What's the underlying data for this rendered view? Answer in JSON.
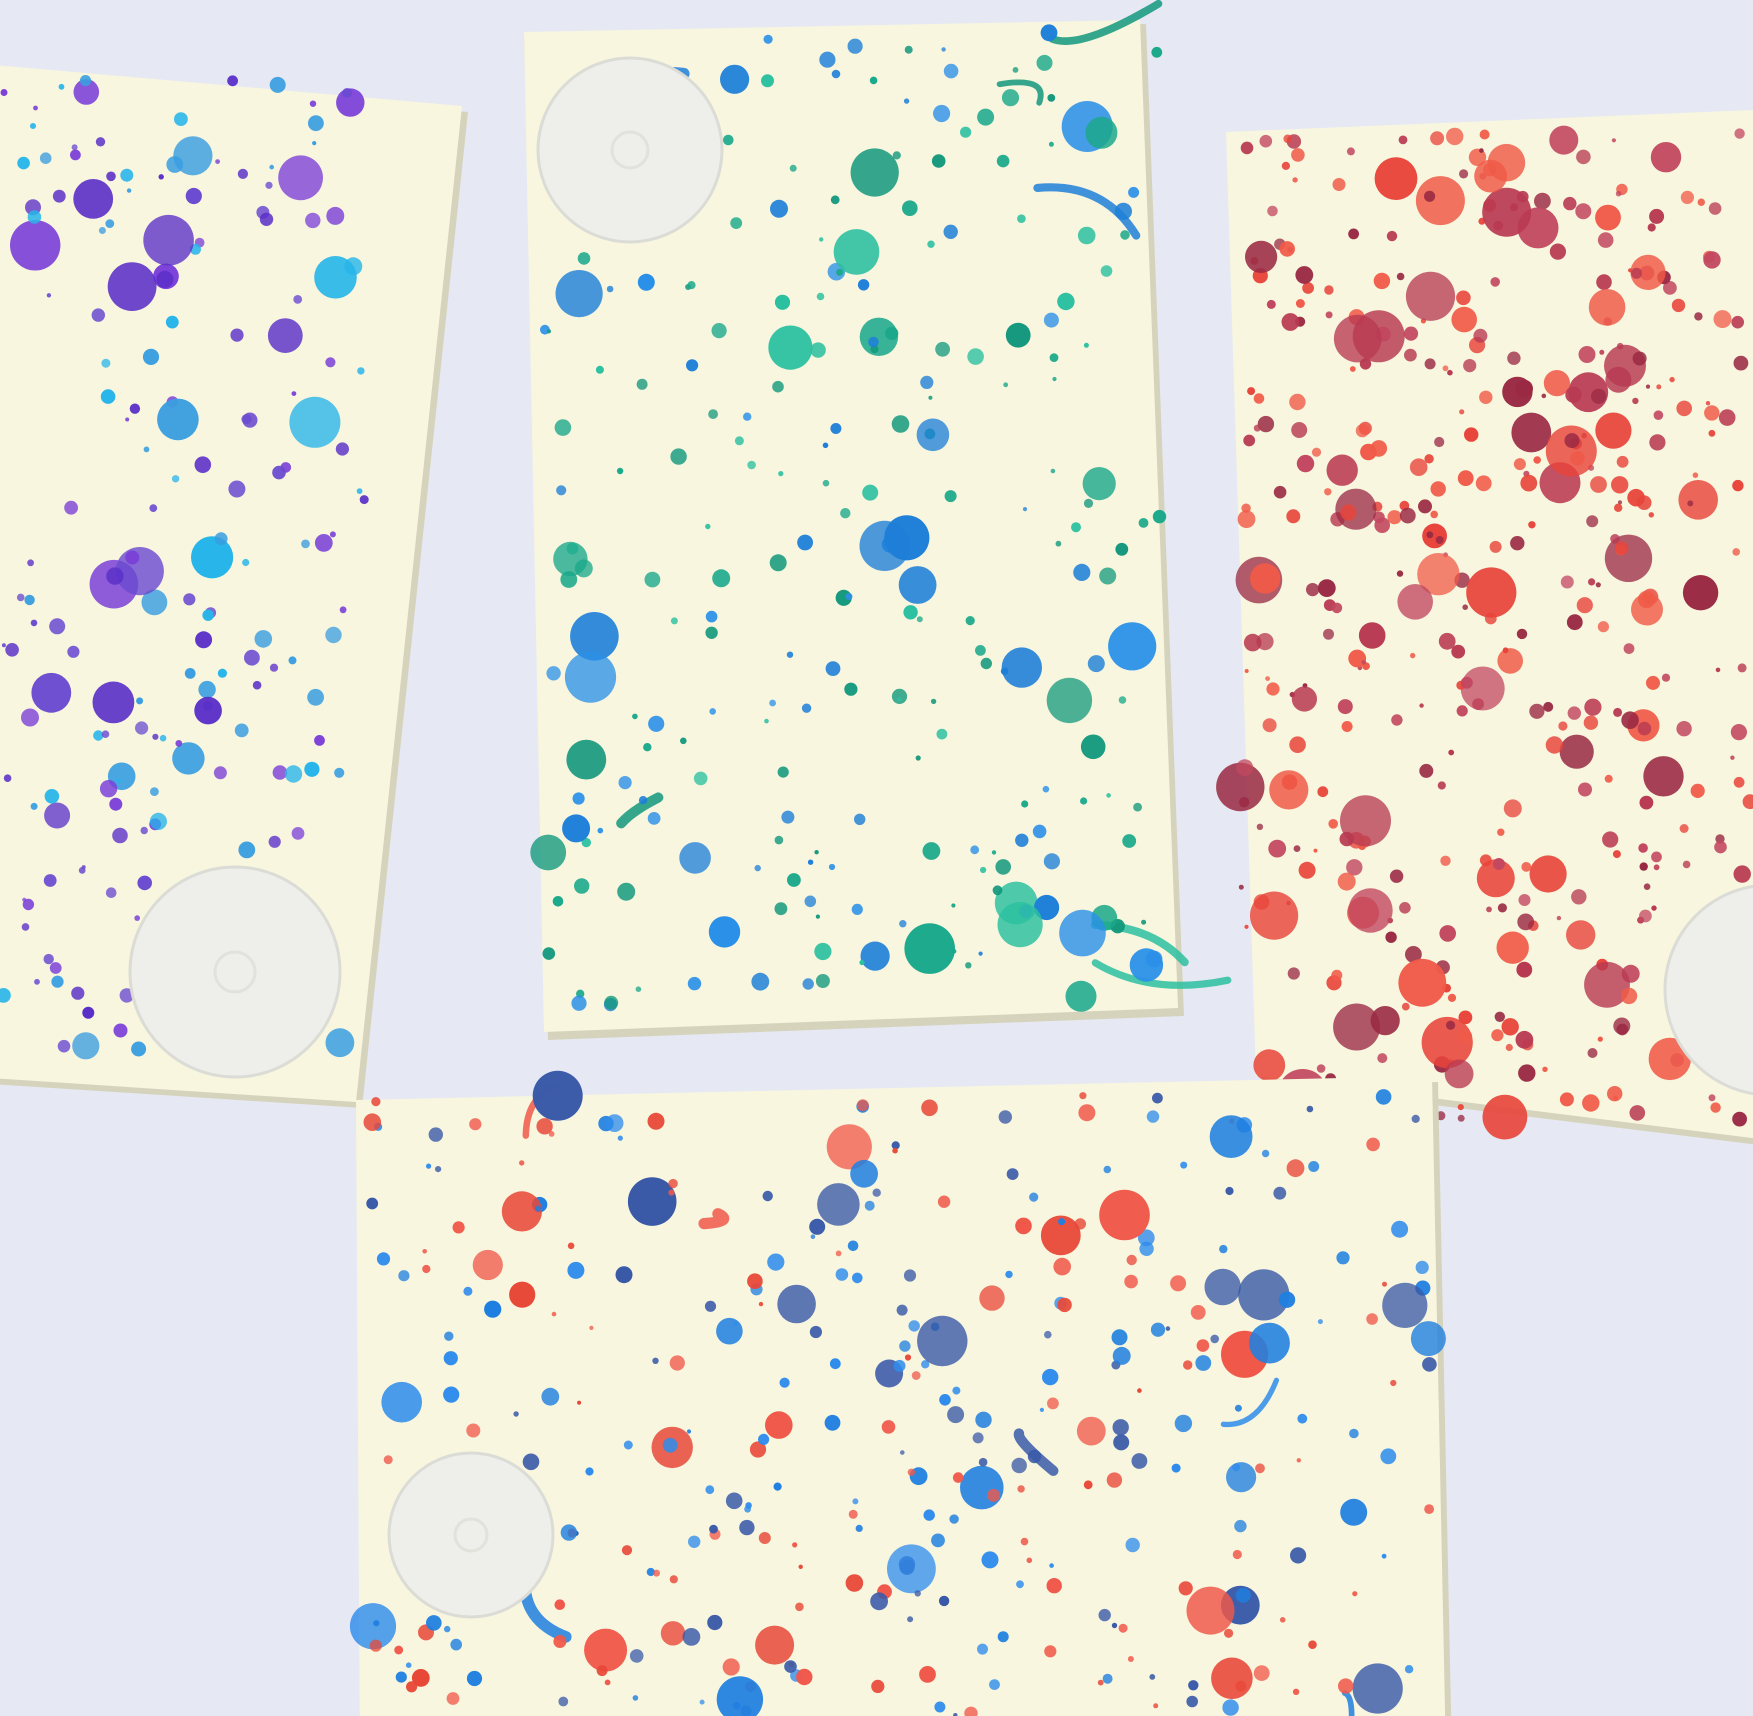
{
  "scene": {
    "description_hidden": false,
    "background_color": "#e6e9f3",
    "paper_color": "#f8f6df",
    "paper_edge_color": "#d6d3bd",
    "sticker_color": "#eeeeea",
    "cards": [
      {
        "name": "purple-blue-card",
        "palette": [
          "#5a2fc8",
          "#7b3fd8",
          "#3a9ee0",
          "#27b5ea",
          "#6a4ad0"
        ]
      },
      {
        "name": "green-blue-card",
        "palette": [
          "#1aa88a",
          "#2bc0a0",
          "#1e7fd8",
          "#2b90e8",
          "#13987c"
        ]
      },
      {
        "name": "red-maroon-card",
        "palette": [
          "#e8443a",
          "#b83a52",
          "#9a2a44",
          "#f05a48",
          "#c24860"
        ]
      },
      {
        "name": "blue-red-card",
        "palette": [
          "#1f7fe0",
          "#2f8cec",
          "#f0584a",
          "#e84838",
          "#3a5aa8"
        ]
      }
    ]
  }
}
